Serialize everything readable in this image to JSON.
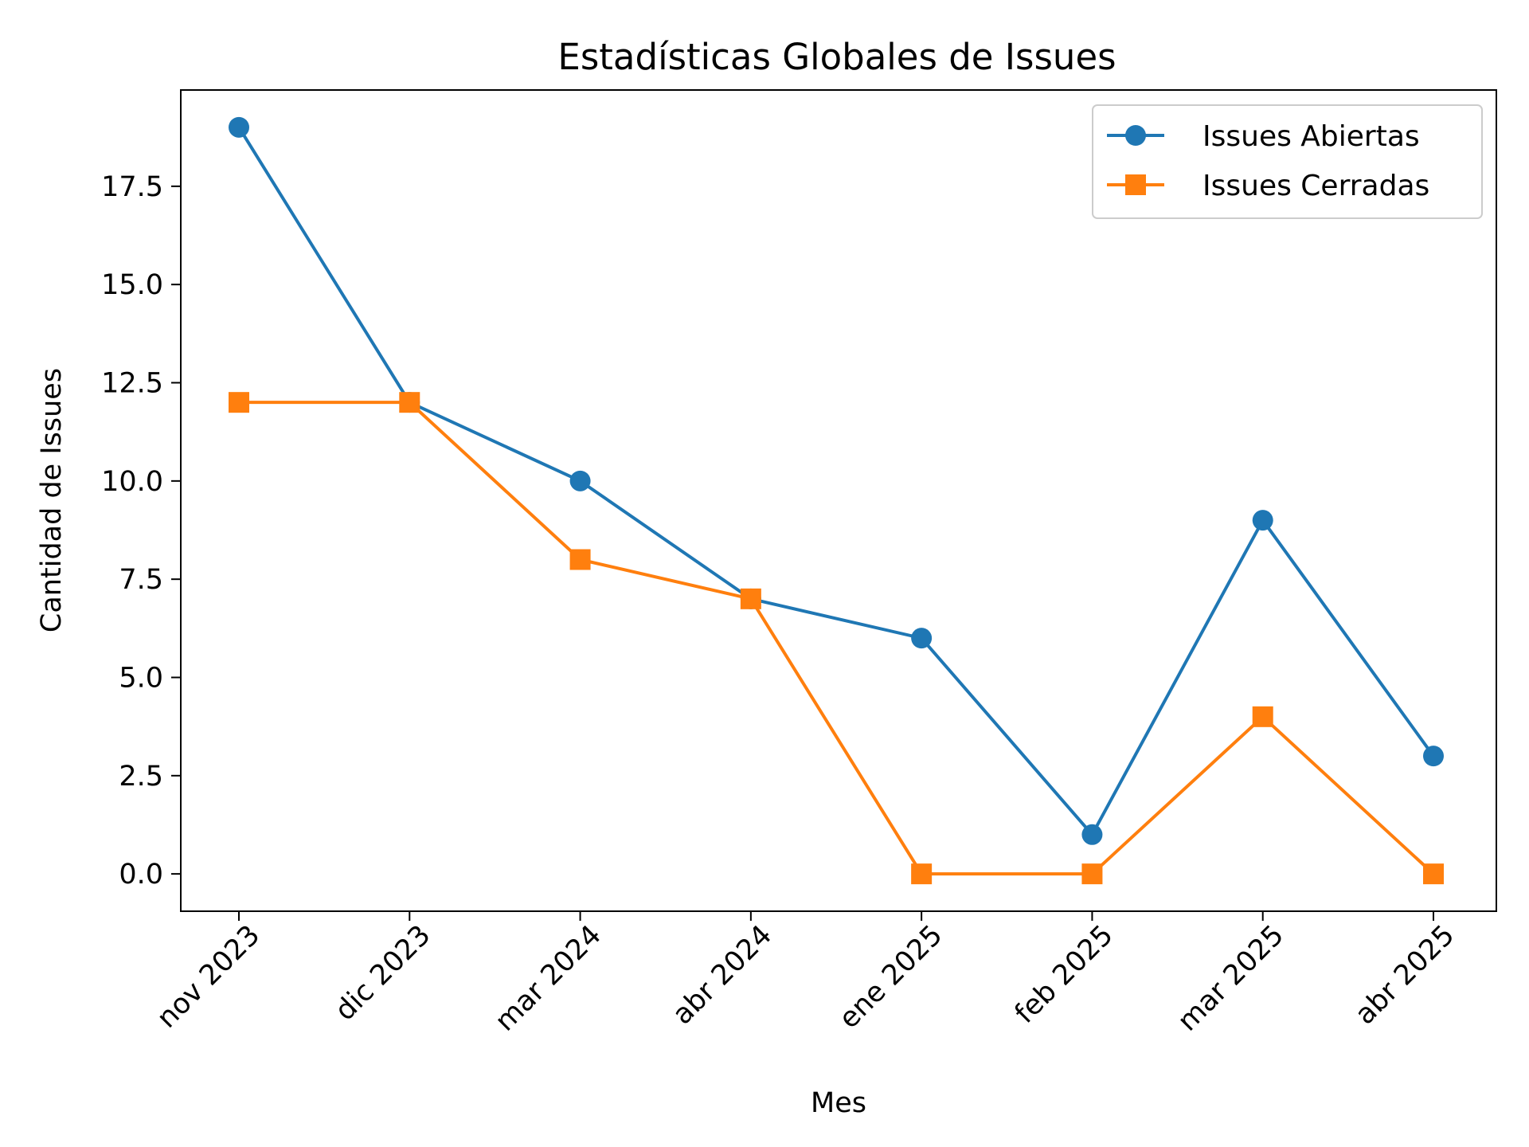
{
  "chart_data": {
    "type": "line",
    "title": "Estadísticas Globales de Issues",
    "xlabel": "Mes",
    "ylabel": "Cantidad de Issues",
    "categories": [
      "nov 2023",
      "dic 2023",
      "mar 2024",
      "abr 2024",
      "ene 2025",
      "feb 2025",
      "mar 2025",
      "abr 2025"
    ],
    "series": [
      {
        "name": "Issues Abiertas",
        "values": [
          19,
          12,
          10,
          7,
          6,
          1,
          9,
          3
        ],
        "color": "#1f77b4",
        "marker": "circle"
      },
      {
        "name": "Issues Cerradas",
        "values": [
          12,
          12,
          8,
          7,
          0,
          0,
          4,
          0
        ],
        "color": "#ff7f0e",
        "marker": "square"
      }
    ],
    "ylim": [
      -0.95,
      19.95
    ],
    "yticks": [
      "0.0",
      "2.5",
      "5.0",
      "7.5",
      "10.0",
      "12.5",
      "15.0",
      "17.5"
    ],
    "grid": false,
    "legend": "upper right"
  }
}
